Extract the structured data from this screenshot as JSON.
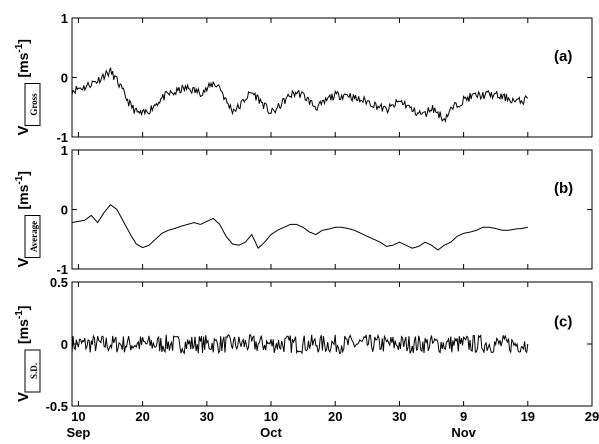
{
  "chart_data": [
    {
      "type": "line",
      "panel_label": "(a)",
      "ylabel_symbol": "V",
      "ylabel_subscript": "Gross",
      "ylabel_unit": "[ms",
      "ylabel_unit_sup": "-1",
      "ylabel_unit_close": "]",
      "ylim": [
        -1,
        1
      ],
      "yticks": [
        -1,
        0,
        1
      ],
      "yticklabels": [
        "-1",
        "0",
        "1"
      ],
      "grid": false,
      "series": [
        {
          "x_start": 9,
          "x_step": 1,
          "values": [
            -0.22,
            -0.18,
            -0.16,
            -0.1,
            -0.05,
            0.04,
            0.1,
            -0.05,
            -0.25,
            -0.45,
            -0.58,
            -0.62,
            -0.55,
            -0.45,
            -0.35,
            -0.28,
            -0.26,
            -0.2,
            -0.18,
            -0.22,
            -0.25,
            -0.2,
            -0.1,
            -0.15,
            -0.4,
            -0.55,
            -0.5,
            -0.35,
            -0.25,
            -0.35,
            -0.48,
            -0.6,
            -0.52,
            -0.4,
            -0.3,
            -0.25,
            -0.3,
            -0.4,
            -0.5,
            -0.45,
            -0.35,
            -0.3,
            -0.3,
            -0.28,
            -0.35,
            -0.38,
            -0.4,
            -0.45,
            -0.5,
            -0.55,
            -0.48,
            -0.4,
            -0.45,
            -0.55,
            -0.6,
            -0.62,
            -0.5,
            -0.6,
            -0.7,
            -0.55,
            -0.45,
            -0.38,
            -0.33,
            -0.3,
            -0.3,
            -0.28,
            -0.3,
            -0.33,
            -0.35,
            -0.4,
            -0.4,
            -0.35
          ],
          "noise": 0.07,
          "seed": 11
        }
      ]
    },
    {
      "type": "line",
      "panel_label": "(b)",
      "ylabel_symbol": "V",
      "ylabel_subscript": "Average",
      "ylabel_unit": "[ms",
      "ylabel_unit_sup": "-1",
      "ylabel_unit_close": "]",
      "ylim": [
        -1,
        1
      ],
      "yticks": [
        -1,
        0,
        1
      ],
      "yticklabels": [
        "-1",
        "0",
        "1"
      ],
      "grid": false,
      "series": [
        {
          "x_start": 9,
          "x_step": 1,
          "values": [
            -0.22,
            -0.2,
            -0.18,
            -0.1,
            -0.22,
            -0.05,
            0.08,
            0.0,
            -0.2,
            -0.4,
            -0.58,
            -0.64,
            -0.6,
            -0.5,
            -0.4,
            -0.35,
            -0.32,
            -0.28,
            -0.25,
            -0.22,
            -0.25,
            -0.2,
            -0.15,
            -0.25,
            -0.45,
            -0.58,
            -0.6,
            -0.55,
            -0.42,
            -0.65,
            -0.55,
            -0.42,
            -0.35,
            -0.3,
            -0.25,
            -0.25,
            -0.3,
            -0.38,
            -0.42,
            -0.35,
            -0.33,
            -0.3,
            -0.3,
            -0.32,
            -0.35,
            -0.4,
            -0.45,
            -0.5,
            -0.55,
            -0.62,
            -0.6,
            -0.55,
            -0.6,
            -0.65,
            -0.62,
            -0.55,
            -0.6,
            -0.68,
            -0.6,
            -0.55,
            -0.45,
            -0.4,
            -0.38,
            -0.35,
            -0.3,
            -0.3,
            -0.32,
            -0.35,
            -0.35,
            -0.33,
            -0.32,
            -0.3
          ],
          "noise": 0,
          "seed": 0
        }
      ]
    },
    {
      "type": "line",
      "panel_label": "(c)",
      "ylabel_symbol": "V",
      "ylabel_subscript": "S.D.",
      "ylabel_unit": "[ms",
      "ylabel_unit_sup": "-1",
      "ylabel_unit_close": "]",
      "ylim": [
        -0.5,
        0.5
      ],
      "yticks": [
        -0.5,
        0,
        0.5
      ],
      "yticklabels": [
        "-0.5",
        "0",
        "0.5"
      ],
      "grid": false,
      "series": [
        {
          "x_start": 9,
          "x_step": 1,
          "values": [
            0,
            0,
            0,
            0,
            0,
            0,
            0,
            0,
            0,
            0,
            0,
            0,
            0,
            0,
            0,
            0,
            0,
            0,
            0,
            0,
            0,
            0,
            0,
            0,
            0,
            0,
            0,
            0,
            0,
            0,
            0,
            0,
            0,
            0,
            0,
            0,
            0,
            0,
            0,
            0,
            0,
            0,
            0,
            0,
            0,
            0,
            0,
            0,
            0,
            0,
            0,
            0,
            0,
            0,
            0,
            0,
            0,
            0,
            0,
            0,
            0,
            0,
            0,
            0,
            0,
            0,
            0,
            0,
            0,
            0,
            0,
            0
          ],
          "noise": 0.075,
          "seed": 7
        }
      ]
    }
  ],
  "x_axis": {
    "xlim": [
      9,
      81
    ],
    "ticks": [
      10,
      20,
      30,
      40,
      50,
      60,
      70,
      80,
      90,
      100,
      110
    ],
    "tick_labels": [
      "10",
      "20",
      "30",
      "10",
      "20",
      "30",
      "9",
      "19",
      "29"
    ],
    "tick_positions": [
      10,
      20,
      30,
      40,
      50,
      60,
      70,
      80,
      90
    ],
    "month_labels": [
      {
        "label": "Sep",
        "at": 10
      },
      {
        "label": "Oct",
        "at": 40
      },
      {
        "label": "Nov",
        "at": 70
      }
    ]
  }
}
